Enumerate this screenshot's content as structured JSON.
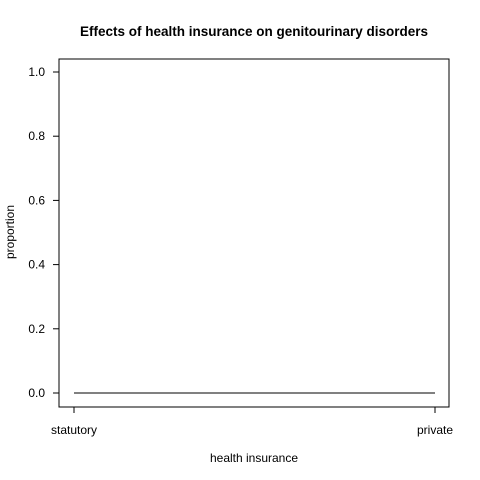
{
  "chart_data": {
    "type": "line",
    "title": "Effects of health insurance on genitourinary disorders",
    "xlabel": "health insurance",
    "ylabel": "proportion",
    "categories": [
      "statutory",
      "private"
    ],
    "ylim": [
      0,
      1
    ],
    "yticks": [
      "0.0",
      "0.2",
      "0.4",
      "0.6",
      "0.8",
      "1.0"
    ],
    "series": [
      {
        "values": [
          0,
          0
        ]
      }
    ],
    "grid": false,
    "legend": "none"
  }
}
